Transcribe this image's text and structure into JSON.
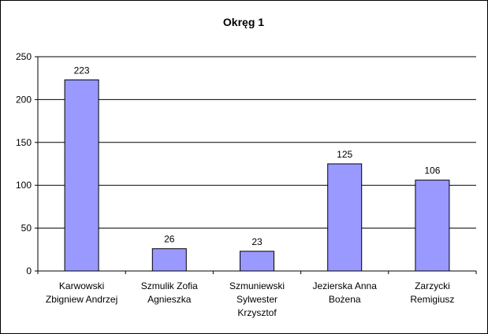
{
  "chart_data": {
    "type": "bar",
    "title": "Okręg 1",
    "categories": [
      [
        "Karwowski",
        "Zbigniew Andrzej"
      ],
      [
        "Szmulik Zofia",
        "Agnieszka"
      ],
      [
        "Szmuniewski",
        "Sylwester",
        "Krzysztof"
      ],
      [
        "Jezierska Anna",
        "Bożena"
      ],
      [
        "Zarzycki",
        "Remigiusz"
      ]
    ],
    "values": [
      223,
      26,
      23,
      125,
      106
    ],
    "data_labels": [
      "223",
      "26",
      "23",
      "125",
      "106"
    ],
    "ylim": [
      0,
      250
    ],
    "yticks": [
      0,
      50,
      100,
      150,
      200,
      250
    ],
    "ytick_labels": [
      "0",
      "50",
      "100",
      "150",
      "200",
      "250"
    ],
    "grid": true,
    "legend": "none",
    "colors": {
      "bar": "#9999ff",
      "bar_edge": "#000000",
      "grid": "#000000",
      "background": "#ffffff"
    }
  }
}
